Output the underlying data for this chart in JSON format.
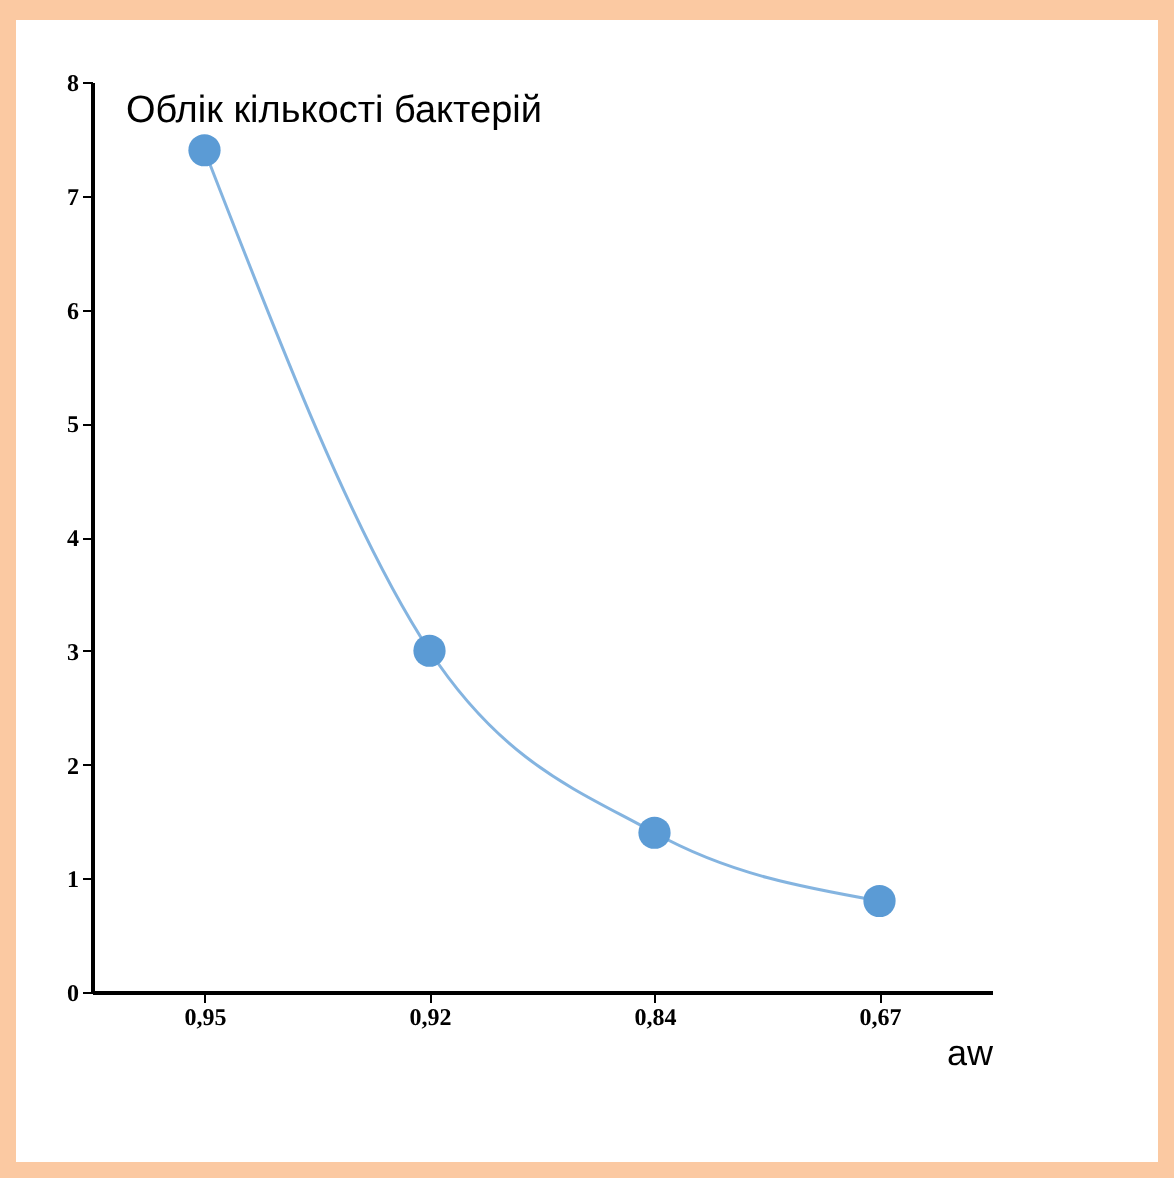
{
  "chart_data": {
    "type": "line",
    "title": "Облік кількості бактерій",
    "xlabel": "aw",
    "categories": [
      "0,95",
      "0,92",
      "0,84",
      "0,67"
    ],
    "series": [
      {
        "color": "#5b9bd5",
        "values": [
          7.4,
          3.0,
          1.4,
          0.8
        ]
      }
    ],
    "ylim": [
      0,
      8
    ],
    "yticks": [
      0,
      1,
      2,
      3,
      4,
      5,
      6,
      7,
      8
    ],
    "marker": "circle",
    "line_style": "solid",
    "grid": false,
    "legend": false
  }
}
